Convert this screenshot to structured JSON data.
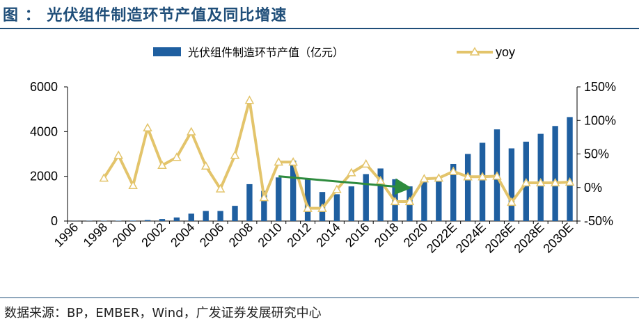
{
  "header": {
    "title": "图 ： 光伏组件制造环节产值及同比增速"
  },
  "footer": {
    "source": "数据来源：BP，EMBER，Wind，广发证券发展研究中心"
  },
  "colors": {
    "bar": "#1f5fa0",
    "line": "#e3c46b",
    "arrow": "#2e8b3e",
    "title": "#1f4e79"
  },
  "chart_data": {
    "type": "bar",
    "title": "",
    "xlabel": "",
    "ylabel": "",
    "categories": [
      "1996",
      "1997",
      "1998",
      "1999",
      "2000",
      "2001",
      "2002",
      "2003",
      "2004",
      "2005",
      "2006",
      "2007",
      "2008",
      "2009",
      "2010",
      "2011",
      "2012",
      "2013",
      "2014",
      "2015",
      "2016",
      "2017",
      "2018",
      "2019",
      "2020",
      "2021",
      "2022E",
      "2023E",
      "2024E",
      "2025E",
      "2026E",
      "2027E",
      "2028E",
      "2029E",
      "2030E"
    ],
    "x_tick_labels": [
      "1996",
      "1998",
      "2000",
      "2002",
      "2004",
      "2006",
      "2008",
      "2010",
      "2012",
      "2014",
      "2016",
      "2018",
      "2020",
      "2022E",
      "2024E",
      "2026E",
      "2028E",
      "2030E"
    ],
    "series": [
      {
        "name": "光伏组件制造环节产值（亿元）",
        "type": "bar",
        "axis": "left",
        "values": [
          5,
          10,
          12,
          15,
          20,
          45,
          90,
          160,
          330,
          450,
          450,
          680,
          1650,
          1350,
          1950,
          2700,
          1850,
          1300,
          1200,
          1550,
          2100,
          2350,
          1870,
          1550,
          1750,
          1850,
          2550,
          3000,
          3500,
          4100,
          3250,
          3550,
          3900,
          4250,
          4650
        ]
      },
      {
        "name": "yoy",
        "type": "line",
        "axis": "right",
        "values": [
          null,
          null,
          14,
          48,
          3,
          89,
          33,
          45,
          83,
          32,
          -2,
          48,
          130,
          -15,
          38,
          38,
          -31,
          -31,
          -3,
          22,
          35,
          10,
          -21,
          -21,
          13,
          14,
          24,
          16,
          16,
          17,
          -22,
          7,
          7,
          7,
          8
        ]
      }
    ],
    "annotations": [
      {
        "type": "arrow",
        "from_category": "2010",
        "from_value": 2000,
        "to_category": "2019",
        "to_value": 1500,
        "axis": "left"
      }
    ],
    "y_left": {
      "min": 0,
      "max": 6000,
      "ticks": [
        0,
        2000,
        4000,
        6000
      ]
    },
    "y_right": {
      "min": -50,
      "max": 150,
      "ticks": [
        -50,
        0,
        50,
        100,
        150
      ],
      "tick_labels": [
        "-50%",
        "0%",
        "50%",
        "100%",
        "150%"
      ]
    },
    "legend": {
      "position": "top",
      "bar_label": "光伏组件制造环节产值（亿元）",
      "line_label": "yoy"
    },
    "grid": false
  }
}
